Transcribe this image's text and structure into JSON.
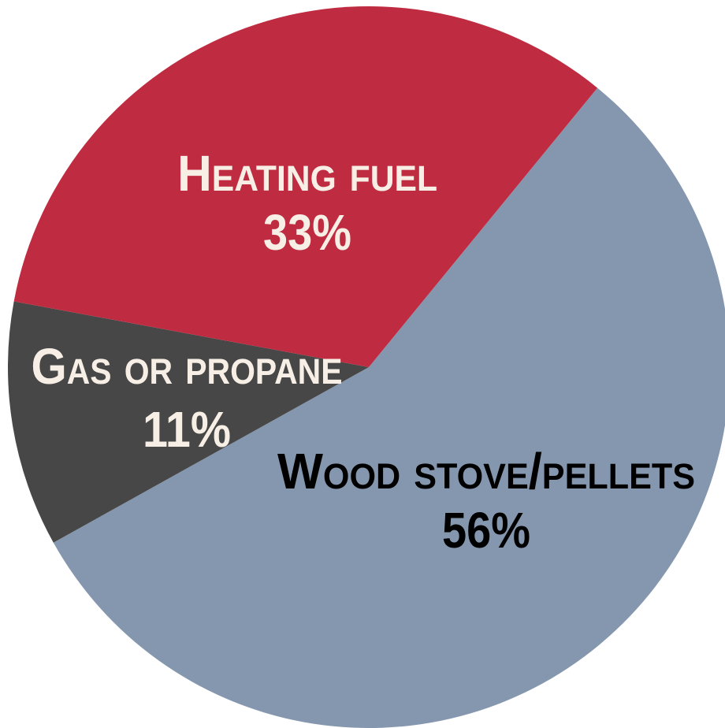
{
  "chart_data": {
    "type": "pie",
    "categories": [
      "Wood stove/pellets",
      "Gas or propane",
      "Heating fuel"
    ],
    "values": [
      56,
      11,
      33
    ],
    "value_labels": [
      "56%",
      "11%",
      "33%"
    ],
    "colors": [
      "#8597ae",
      "#474747",
      "#bf2b40"
    ]
  }
}
